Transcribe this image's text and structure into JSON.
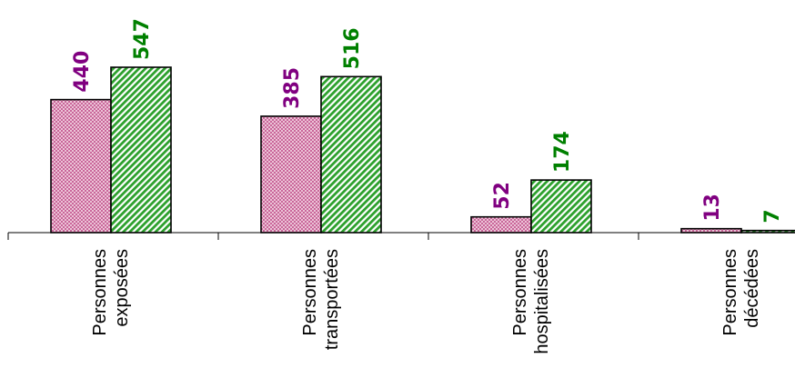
{
  "chart_data": {
    "type": "bar",
    "categories": [
      [
        "Personnes",
        "exposées"
      ],
      [
        "Personnes",
        "transportées"
      ],
      [
        "Personnes",
        "hospitalisées"
      ],
      [
        "Personnes",
        "décédées"
      ]
    ],
    "series": [
      {
        "values": [
          440,
          385,
          52,
          13
        ],
        "color": "#800080",
        "pattern": "crosshatch-pink"
      },
      {
        "values": [
          547,
          516,
          174,
          7
        ],
        "color": "#008000",
        "pattern": "diagonal-green"
      }
    ],
    "ylim": [
      0,
      560
    ],
    "grid": false,
    "legend": "none"
  }
}
